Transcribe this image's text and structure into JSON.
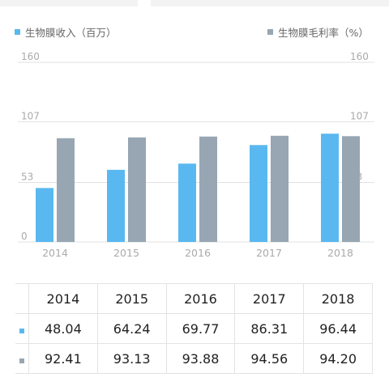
{
  "legend": {
    "left_label": "生物膜收入（百万）",
    "right_label": "生物膜毛利率（%）"
  },
  "colors": {
    "revenue": "#5ab8f0",
    "margin": "#97a6b2",
    "grid": "#e2e2e2",
    "axis_text": "#aaaaaa"
  },
  "chart_data": {
    "type": "bar",
    "categories": [
      "2014",
      "2015",
      "2016",
      "2017",
      "2018"
    ],
    "series": [
      {
        "name": "生物膜收入（百万）",
        "axis": "left",
        "values": [
          48.04,
          64.24,
          69.77,
          86.31,
          96.44
        ]
      },
      {
        "name": "生物膜毛利率（%）",
        "axis": "right",
        "values": [
          92.41,
          93.13,
          93.88,
          94.56,
          94.2
        ]
      }
    ],
    "y_ticks": [
      "0",
      "53",
      "107",
      "160"
    ],
    "ylim": [
      0,
      160
    ],
    "grid": true
  },
  "table": {
    "header": [
      "2014",
      "2015",
      "2016",
      "2017",
      "2018"
    ],
    "rows": [
      {
        "series": "revenue",
        "values": [
          "48.04",
          "64.24",
          "69.77",
          "86.31",
          "96.44"
        ]
      },
      {
        "series": "margin",
        "values": [
          "92.41",
          "93.13",
          "93.88",
          "94.56",
          "94.20"
        ]
      }
    ]
  }
}
